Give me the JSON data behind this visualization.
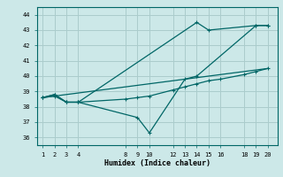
{
  "xlabel": "Humidex (Indice chaleur)",
  "bg_color": "#cce8e8",
  "grid_color": "#aacccc",
  "line_color": "#006666",
  "xtick_positions": [
    1,
    2,
    3,
    4,
    8,
    9,
    10,
    12,
    13,
    14,
    15,
    16,
    18,
    19,
    20
  ],
  "xtick_labels": [
    "1",
    "2",
    "3",
    "4",
    "8",
    "9",
    "10",
    "12",
    "13",
    "14",
    "15",
    "16",
    "18",
    "19",
    "20"
  ],
  "xlim": [
    0.5,
    20.8
  ],
  "ylim": [
    35.5,
    44.5
  ],
  "yticks": [
    36,
    37,
    38,
    39,
    40,
    41,
    42,
    43,
    44
  ],
  "lines": [
    {
      "x": [
        1,
        2,
        3,
        4,
        14,
        15,
        19,
        20
      ],
      "y": [
        38.6,
        38.8,
        38.3,
        38.3,
        43.5,
        43.0,
        43.3,
        43.3
      ],
      "marker": true
    },
    {
      "x": [
        1,
        2,
        3,
        4,
        9,
        10,
        13,
        14,
        19,
        20
      ],
      "y": [
        38.6,
        38.8,
        38.3,
        38.3,
        37.3,
        36.3,
        39.8,
        40.0,
        43.3,
        43.3
      ],
      "marker": true
    },
    {
      "x": [
        1,
        2,
        3,
        4,
        8,
        9,
        10,
        12,
        13,
        14,
        15,
        16,
        18,
        19,
        20
      ],
      "y": [
        38.6,
        38.7,
        38.3,
        38.3,
        38.5,
        38.6,
        38.7,
        39.1,
        39.3,
        39.5,
        39.7,
        39.8,
        40.1,
        40.3,
        40.5
      ],
      "marker": true
    },
    {
      "x": [
        1,
        20
      ],
      "y": [
        38.6,
        40.5
      ],
      "marker": false
    }
  ]
}
